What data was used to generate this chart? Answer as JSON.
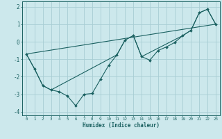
{
  "xlabel": "Humidex (Indice chaleur)",
  "ylabel": "",
  "xlim": [
    -0.5,
    23.5
  ],
  "ylim": [
    -4.2,
    2.3
  ],
  "xticks": [
    0,
    1,
    2,
    3,
    4,
    5,
    6,
    7,
    8,
    9,
    10,
    11,
    12,
    13,
    14,
    15,
    16,
    17,
    18,
    19,
    20,
    21,
    22,
    23
  ],
  "yticks": [
    -4,
    -3,
    -2,
    -1,
    0,
    1,
    2
  ],
  "background_color": "#cce8ec",
  "grid_color": "#a8cdd4",
  "line_color": "#1a6060",
  "lines": [
    {
      "x": [
        0,
        1,
        2,
        3,
        4,
        5,
        6,
        7,
        8,
        9,
        10,
        11,
        12,
        13,
        14,
        15,
        16,
        17,
        18,
        19,
        20,
        21,
        22,
        23
      ],
      "y": [
        -0.7,
        -1.55,
        -2.5,
        -2.75,
        -2.85,
        -3.1,
        -3.65,
        -3.0,
        -2.95,
        -2.15,
        -1.35,
        -0.75,
        0.1,
        0.35,
        -0.85,
        -1.05,
        -0.5,
        -0.3,
        -0.05,
        0.35,
        0.65,
        1.65,
        1.85,
        1.0
      ],
      "has_markers": true
    },
    {
      "x": [
        0,
        1,
        2,
        3,
        11,
        12,
        13,
        14,
        19,
        20,
        21,
        22,
        23
      ],
      "y": [
        -0.7,
        -1.55,
        -2.5,
        -2.75,
        -0.75,
        0.1,
        0.35,
        -0.85,
        0.35,
        0.65,
        1.65,
        1.85,
        1.0
      ],
      "has_markers": false
    },
    {
      "x": [
        0,
        23
      ],
      "y": [
        -0.7,
        1.0
      ],
      "has_markers": false
    }
  ]
}
